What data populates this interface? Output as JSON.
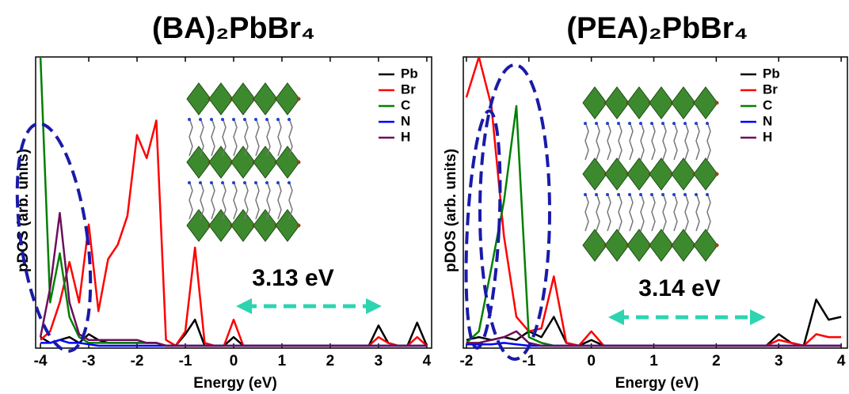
{
  "chart_data": [
    {
      "type": "line",
      "title": "(BA)₂PbBr₄",
      "xlabel": "Energy (eV)",
      "ylabel": "pDOS (arb. units)",
      "annotation": "3.13 eV",
      "xlim": [
        -4.1,
        4.1
      ],
      "ylim": [
        0,
        10
      ],
      "xticks": [
        -4,
        -3,
        -2,
        -1,
        0,
        1,
        2,
        3,
        4
      ],
      "x": [
        -4.0,
        -3.8,
        -3.6,
        -3.4,
        -3.2,
        -3.0,
        -2.8,
        -2.6,
        -2.4,
        -2.2,
        -2.0,
        -1.8,
        -1.6,
        -1.4,
        -1.2,
        -1.0,
        -0.8,
        -0.6,
        -0.4,
        -0.2,
        0.0,
        0.2,
        0.4,
        0.6,
        0.8,
        1.0,
        1.2,
        1.4,
        1.6,
        1.8,
        2.0,
        2.2,
        2.4,
        2.6,
        2.8,
        3.0,
        3.2,
        3.4,
        3.6,
        3.8,
        4.0
      ],
      "series": [
        {
          "name": "Pb",
          "color": "#000000",
          "values": [
            0.3,
            0.1,
            0.2,
            0.3,
            0.1,
            0.4,
            0.2,
            0.1,
            0.1,
            0.1,
            0.1,
            0.1,
            0.1,
            0,
            0,
            0.4,
            0.9,
            0,
            0,
            0,
            0.3,
            0,
            0,
            0,
            0,
            0,
            0,
            0,
            0,
            0,
            0,
            0,
            0,
            0,
            0,
            0.7,
            0.1,
            0,
            0,
            0.8,
            0
          ]
        },
        {
          "name": "Br",
          "color": "#ff0000",
          "values": [
            0.2,
            0.5,
            1.5,
            2.9,
            1.5,
            4.2,
            1.2,
            3.0,
            3.5,
            4.5,
            7.3,
            6.5,
            7.8,
            0.2,
            0,
            0.5,
            3.4,
            0.1,
            0,
            0,
            0.9,
            0,
            0,
            0,
            0,
            0,
            0,
            0,
            0,
            0,
            0,
            0,
            0,
            0,
            0,
            0.3,
            0.1,
            0,
            0,
            0.3,
            0
          ]
        },
        {
          "name": "C",
          "color": "#008000",
          "values": [
            10,
            1.5,
            3.2,
            1.0,
            0.3,
            0.1,
            0.1,
            0.1,
            0.1,
            0.1,
            0.1,
            0.1,
            0.1,
            0,
            0,
            0,
            0,
            0,
            0,
            0,
            0,
            0,
            0,
            0,
            0,
            0,
            0,
            0,
            0,
            0,
            0,
            0,
            0,
            0,
            0,
            0,
            0,
            0,
            0,
            0,
            0
          ]
        },
        {
          "name": "N",
          "color": "#0000ff",
          "values": [
            0.1,
            0.1,
            0.2,
            0.1,
            0.1,
            0.05,
            0,
            0,
            0,
            0,
            0,
            0,
            0,
            0,
            0,
            0,
            0,
            0,
            0,
            0,
            0,
            0,
            0,
            0,
            0,
            0,
            0,
            0,
            0,
            0,
            0,
            0,
            0,
            0,
            0,
            0,
            0,
            0,
            0,
            0,
            0
          ]
        },
        {
          "name": "H",
          "color": "#6b0f5a",
          "values": [
            0.3,
            2.0,
            4.6,
            1.5,
            0.4,
            0.2,
            0.2,
            0.2,
            0.2,
            0.2,
            0.2,
            0.1,
            0.1,
            0,
            0,
            0,
            0,
            0,
            0,
            0,
            0,
            0,
            0,
            0,
            0,
            0,
            0,
            0,
            0,
            0,
            0,
            0,
            0,
            0,
            0,
            0,
            0,
            0,
            0,
            0,
            0
          ]
        }
      ]
    },
    {
      "type": "line",
      "title": "(PEA)₂PbBr₄",
      "xlabel": "Energy (eV)",
      "ylabel": "pDOS (arb. units)",
      "annotation": "3.14 eV",
      "xlim": [
        -2.05,
        4.1
      ],
      "ylim": [
        0,
        10
      ],
      "xticks": [
        -2,
        -1,
        0,
        1,
        2,
        3,
        4
      ],
      "x": [
        -2.0,
        -1.8,
        -1.6,
        -1.4,
        -1.2,
        -1.0,
        -0.8,
        -0.6,
        -0.4,
        -0.2,
        0.0,
        0.2,
        0.4,
        0.6,
        0.8,
        1.0,
        1.2,
        1.4,
        1.6,
        1.8,
        2.0,
        2.2,
        2.4,
        2.6,
        2.8,
        3.0,
        3.2,
        3.4,
        3.6,
        3.8,
        4.0
      ],
      "series": [
        {
          "name": "Pb",
          "color": "#000000",
          "values": [
            0.2,
            0.3,
            0.2,
            0.3,
            0.2,
            0.5,
            0.3,
            1.0,
            0.1,
            0,
            0.2,
            0,
            0,
            0,
            0,
            0,
            0,
            0,
            0,
            0,
            0,
            0,
            0,
            0,
            0,
            0.4,
            0.1,
            0,
            1.6,
            0.9,
            1.0
          ]
        },
        {
          "name": "Br",
          "color": "#ff0000",
          "values": [
            8.6,
            10,
            8.3,
            3.8,
            1.0,
            0.5,
            0.6,
            2.4,
            0.1,
            0,
            0.5,
            0,
            0,
            0,
            0,
            0,
            0,
            0,
            0,
            0,
            0,
            0,
            0,
            0,
            0,
            0.2,
            0.1,
            0,
            0.4,
            0.3,
            0.3
          ]
        },
        {
          "name": "C",
          "color": "#008000",
          "values": [
            0.1,
            0.5,
            2.7,
            5.0,
            8.3,
            0.3,
            0.1,
            0,
            0,
            0,
            0,
            0,
            0,
            0,
            0,
            0,
            0,
            0,
            0,
            0,
            0,
            0,
            0,
            0,
            0,
            0,
            0,
            0,
            0,
            0,
            0
          ]
        },
        {
          "name": "N",
          "color": "#0000ff",
          "values": [
            0.05,
            0.05,
            0.05,
            0.1,
            0.05,
            0,
            0,
            0,
            0,
            0,
            0,
            0,
            0,
            0,
            0,
            0,
            0,
            0,
            0,
            0,
            0,
            0,
            0,
            0,
            0,
            0,
            0,
            0,
            0,
            0,
            0
          ]
        },
        {
          "name": "H",
          "color": "#6b0f5a",
          "values": [
            0.1,
            0.1,
            0.2,
            0.3,
            0.5,
            0.1,
            0,
            0,
            0,
            0,
            0,
            0,
            0,
            0,
            0,
            0,
            0,
            0,
            0,
            0,
            0,
            0,
            0,
            0,
            0,
            0,
            0,
            0,
            0,
            0,
            0
          ]
        }
      ]
    }
  ]
}
